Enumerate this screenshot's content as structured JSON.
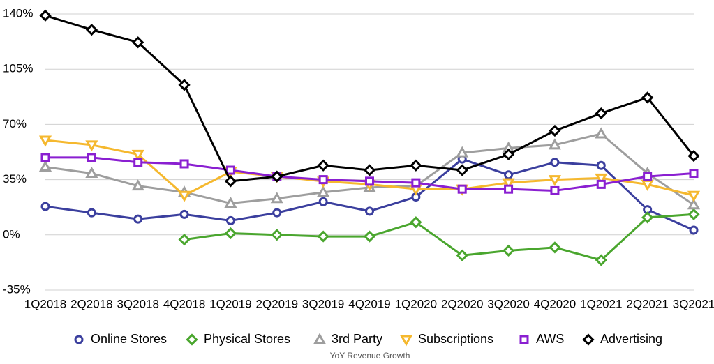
{
  "chart_data": {
    "type": "line",
    "title": "YoY Revenue Growth",
    "categories": [
      "1Q2018",
      "2Q2018",
      "3Q2018",
      "4Q2018",
      "1Q2019",
      "2Q2019",
      "3Q2019",
      "4Q2019",
      "1Q2020",
      "2Q2020",
      "3Q2020",
      "4Q2020",
      "1Q2021",
      "2Q2021",
      "3Q2021"
    ],
    "ylim": [
      -35,
      140
    ],
    "yticks": [
      {
        "value": -35,
        "label": "-35%"
      },
      {
        "value": 0,
        "label": "0%"
      },
      {
        "value": 35,
        "label": "35%"
      },
      {
        "value": 70,
        "label": "70%"
      },
      {
        "value": 105,
        "label": "105%"
      },
      {
        "value": 140,
        "label": "140%"
      }
    ],
    "grid": true,
    "legend": "bottom",
    "series": [
      {
        "name": "Online Stores",
        "color": "#3b3f9e",
        "marker": "circle",
        "values": [
          18,
          14,
          10,
          13,
          9,
          14,
          21,
          15,
          24,
          48,
          38,
          46,
          44,
          16,
          3
        ]
      },
      {
        "name": "Physical Stores",
        "color": "#4aa62e",
        "marker": "diamond",
        "values": [
          null,
          null,
          null,
          -3,
          1,
          0,
          -1,
          -1,
          8,
          -13,
          -10,
          -8,
          -16,
          11,
          13
        ]
      },
      {
        "name": "3rd Party",
        "color": "#9e9e9e",
        "marker": "triangle-up",
        "values": [
          43,
          39,
          31,
          27,
          20,
          23,
          27,
          30,
          31,
          52,
          55,
          57,
          64,
          39,
          19
        ]
      },
      {
        "name": "Subscriptions",
        "color": "#f5b82e",
        "marker": "triangle-down",
        "values": [
          60,
          57,
          51,
          25,
          40,
          37,
          34,
          32,
          29,
          29,
          33,
          35,
          36,
          32,
          25
        ]
      },
      {
        "name": "AWS",
        "color": "#8a1fd1",
        "marker": "square",
        "values": [
          49,
          49,
          46,
          45,
          41,
          37,
          35,
          34,
          33,
          29,
          29,
          28,
          32,
          37,
          39
        ]
      },
      {
        "name": "Advertising",
        "color": "#000000",
        "marker": "diamond",
        "values": [
          139,
          130,
          122,
          95,
          34,
          37,
          44,
          41,
          44,
          41,
          51,
          66,
          77,
          87,
          50
        ]
      }
    ]
  }
}
